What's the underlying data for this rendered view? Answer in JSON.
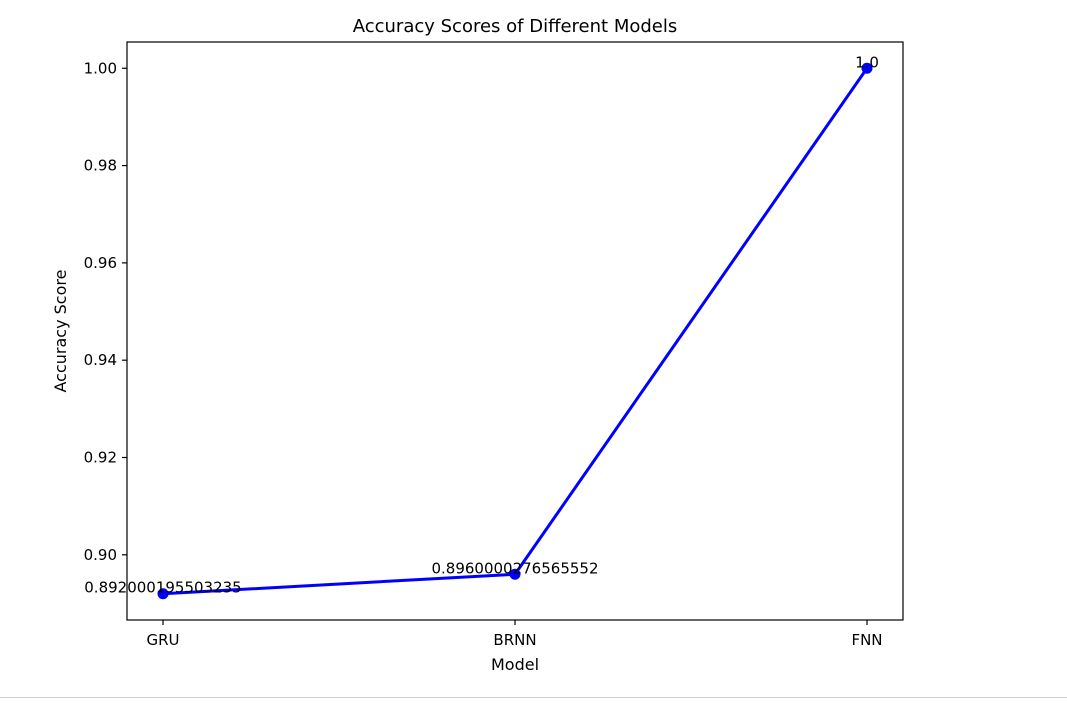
{
  "chart_data": {
    "type": "line",
    "title": "Accuracy Scores of Different Models",
    "xlabel": "Model",
    "ylabel": "Accuracy Score",
    "categories": [
      "GRU",
      "BRNN",
      "FNN"
    ],
    "series": [
      {
        "values": [
          0.892000195503235,
          0.8960000276565552,
          1.0
        ],
        "color": "#0000ff",
        "marker": "circle"
      }
    ],
    "data_labels": [
      "0.892000195503235",
      "0.8960000276565552",
      "1.0"
    ],
    "y_ticks": [
      0.9,
      0.92,
      0.94,
      0.96,
      0.98,
      1.0
    ],
    "y_tick_labels": [
      "0.90",
      "0.92",
      "0.94",
      "0.96",
      "0.98",
      "1.00"
    ],
    "ylim": [
      0.8866,
      1.0054
    ],
    "grid": false,
    "legend": "none"
  }
}
